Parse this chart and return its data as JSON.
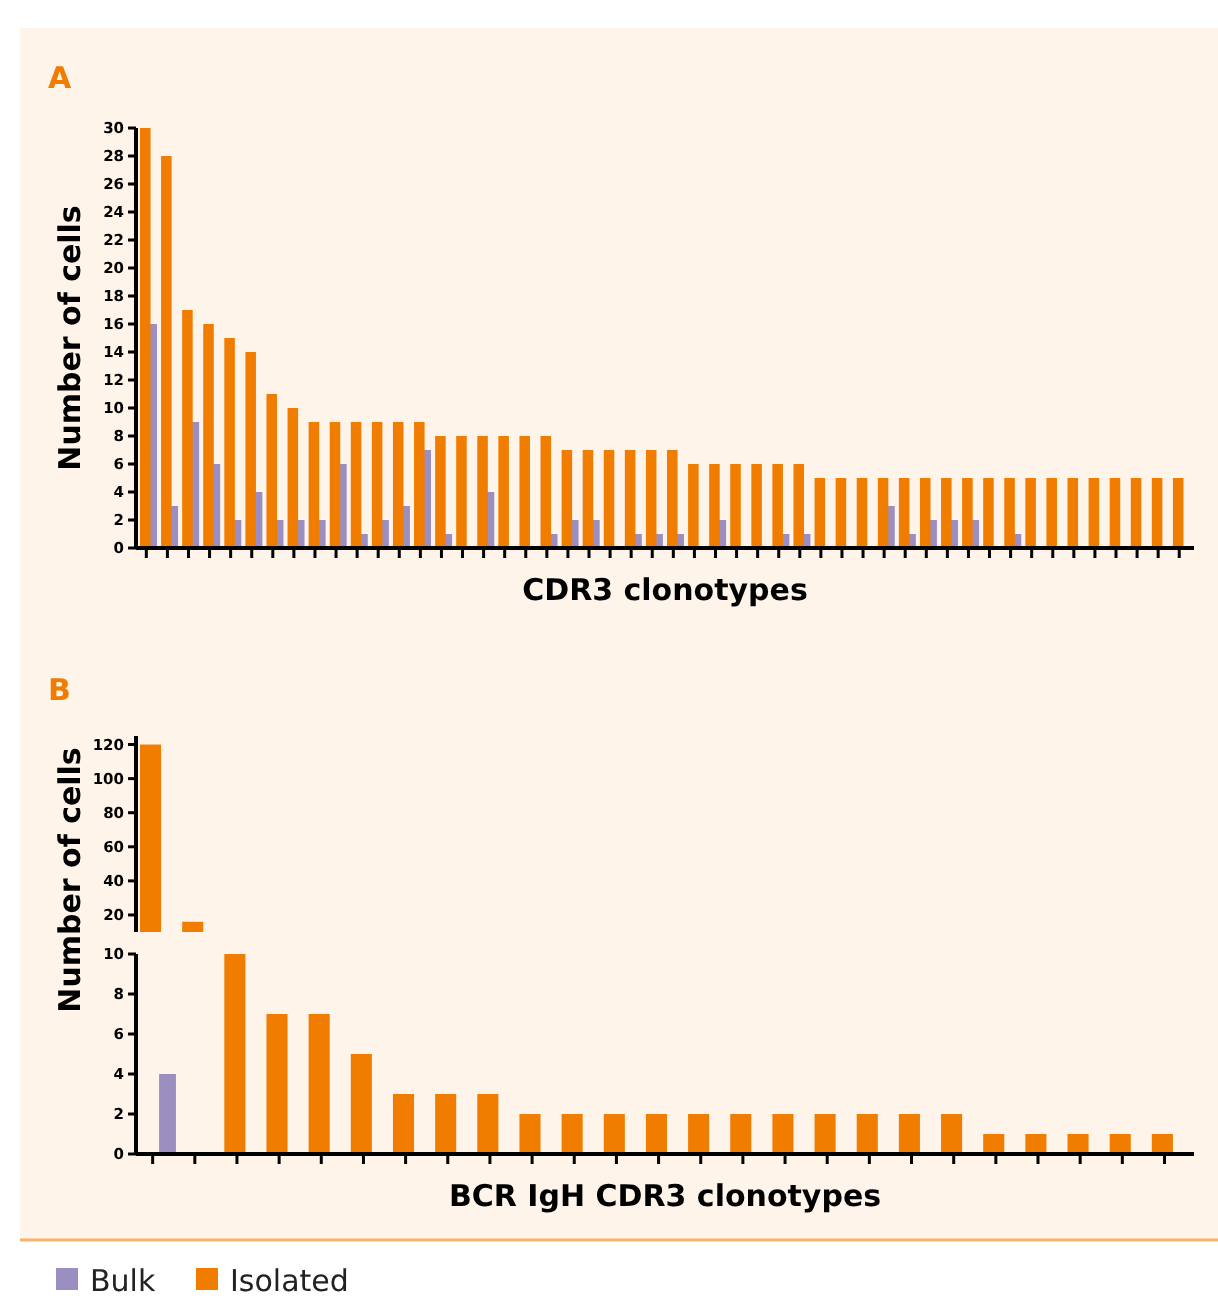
{
  "chart_data": [
    {
      "type": "bar",
      "title": "A",
      "xlabel": "CDR3 clonotypes",
      "ylabel": "Number of cells",
      "categories": [
        null,
        null,
        null,
        null,
        null,
        null,
        null,
        null,
        null,
        null,
        null,
        null,
        null,
        null,
        null,
        null,
        null,
        null,
        null,
        null,
        null,
        null,
        null,
        null,
        null,
        null,
        null,
        null,
        null,
        null,
        null,
        null,
        null,
        null,
        null,
        null,
        null,
        null,
        null,
        null,
        null,
        null,
        null,
        null,
        null,
        null,
        null,
        null,
        null,
        null
      ],
      "series": [
        {
          "name": "Isolated",
          "color": "#f07d00",
          "values": [
            30,
            28,
            17,
            16,
            15,
            14,
            11,
            10,
            9,
            9,
            9,
            9,
            9,
            9,
            8,
            8,
            8,
            8,
            8,
            8,
            7,
            7,
            7,
            7,
            7,
            7,
            6,
            6,
            6,
            6,
            6,
            6,
            5,
            5,
            5,
            5,
            5,
            5,
            5,
            5,
            5,
            5,
            5,
            5,
            5,
            5,
            5,
            5,
            5,
            5
          ]
        },
        {
          "name": "Bulk",
          "color": "#9b8fc2",
          "values": [
            16,
            3,
            9,
            6,
            2,
            4,
            2,
            2,
            2,
            6,
            1,
            2,
            3,
            7,
            1,
            0,
            4,
            0,
            0,
            1,
            2,
            2,
            0,
            1,
            1,
            1,
            0,
            2,
            0,
            0,
            1,
            1,
            0,
            0,
            0,
            3,
            1,
            2,
            2,
            2,
            0,
            1,
            0,
            0,
            0,
            0,
            0,
            0,
            0,
            0
          ]
        }
      ],
      "ylim": [
        0,
        30
      ],
      "yticks": [
        0,
        2,
        4,
        6,
        8,
        10,
        12,
        14,
        16,
        18,
        20,
        22,
        24,
        26,
        28,
        30
      ],
      "legend": "bottom"
    },
    {
      "type": "bar",
      "title": "B",
      "ylabel": "Number of cells",
      "categories": [
        null,
        null
      ],
      "series": [
        {
          "color": "#f07d00",
          "values": [
            120,
            16
          ]
        }
      ],
      "ylim": [
        10,
        125
      ],
      "yticks": [
        20,
        40,
        60,
        80,
        100,
        120
      ],
      "tick_labels": "y"
    },
    {
      "type": "bar",
      "xlabel": "BCR IgH CDR3 clonotypes",
      "categories": [
        null,
        null,
        null,
        null,
        null,
        null,
        null,
        null,
        null,
        null,
        null,
        null,
        null,
        null,
        null,
        null,
        null,
        null,
        null,
        null,
        null,
        null,
        null,
        null,
        null
      ],
      "series": [
        {
          "color": "#f07d00",
          "values": [
            null,
            null,
            10,
            7,
            7,
            5,
            3,
            3,
            3,
            2,
            2,
            2,
            2,
            2,
            2,
            2,
            2,
            2,
            2,
            2,
            1,
            1,
            1,
            1,
            1
          ]
        },
        {
          "color": "#9b8fc2",
          "values": [
            4,
            0,
            0,
            0,
            0,
            0,
            0,
            0,
            0,
            0,
            0,
            0,
            0,
            0,
            0,
            0,
            0,
            0,
            0,
            0,
            0,
            0,
            0,
            0,
            0
          ]
        }
      ],
      "ylim": [
        0,
        10
      ],
      "yticks": [
        0,
        2,
        4,
        6,
        8,
        10
      ]
    }
  ]
}
